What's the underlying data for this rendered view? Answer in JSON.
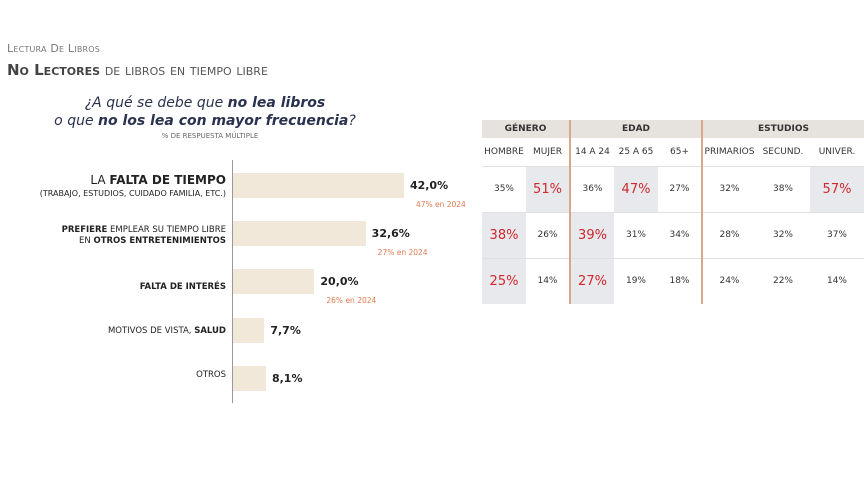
{
  "header": {
    "kicker": "Lectura De Libros",
    "title_bold": "No Lectores",
    "title_rest": " de libros en tiempo libre"
  },
  "question": {
    "p1": "¿A qué se debe que ",
    "b1": "no lea libros",
    "p2": "o que ",
    "b2": "no los lea con mayor frecuencia",
    "p3": "?",
    "note": "% DE RESPUESTA MÚLTIPLE"
  },
  "chart_data": {
    "type": "bar",
    "orientation": "horizontal",
    "categories": [
      "LA FALTA DE TIEMPO (TRABAJO, ESTUDIOS, CUIDADO FAMILIA, ETC.)",
      "PREFIERE EMPLEAR SU TIEMPO LIBRE EN OTROS ENTRETENIMIENTOS",
      "FALTA DE INTERÉS",
      "MOTIVOS DE VISTA, SALUD",
      "OTROS"
    ],
    "values": [
      42.0,
      32.6,
      20.0,
      7.7,
      8.1
    ],
    "value_labels": [
      "42,0%",
      "32,6%",
      "20,0%",
      "7,7%",
      "8,1%"
    ],
    "previous_labels": [
      "47% en 2024",
      "27% en 2024",
      "26% en 2024",
      "",
      ""
    ],
    "bar_color": "#f2e8da",
    "labels": [
      {
        "pre": "LA ",
        "bold": "FALTA DE TIEMPO",
        "post": "",
        "sub": "(TRABAJO, ESTUDIOS, CUIDADO FAMILIA, ETC.)"
      },
      {
        "pre": "",
        "bold": "PREFIERE",
        "post": " EMPLEAR SU TIEMPO LIBRE",
        "sub_pre": "EN ",
        "sub_bold": "OTROS ENTRETENIMIENTOS"
      },
      {
        "pre": "",
        "bold": "FALTA DE INTERÉS",
        "post": ""
      },
      {
        "pre": "MOTIVOS DE VISTA, ",
        "bold": "SALUD",
        "post": ""
      },
      {
        "pre": "OTROS",
        "bold": "",
        "post": ""
      }
    ]
  },
  "table": {
    "groups": [
      "GÉNERO",
      "EDAD",
      "ESTUDIOS"
    ],
    "columns": [
      "HOMBRE",
      "MUJER",
      "14 A 24",
      "25 A 65",
      "65+",
      "PRIMARIOS",
      "SECUND.",
      "UNIVER."
    ],
    "rows": [
      [
        "35%",
        "51%",
        "36%",
        "47%",
        "27%",
        "32%",
        "38%",
        "57%"
      ],
      [
        "38%",
        "26%",
        "39%",
        "31%",
        "34%",
        "28%",
        "32%",
        "37%"
      ],
      [
        "25%",
        "14%",
        "27%",
        "19%",
        "18%",
        "24%",
        "22%",
        "14%"
      ]
    ],
    "highlight": [
      [
        1,
        3,
        7
      ],
      [
        0,
        2
      ],
      [
        0,
        2
      ]
    ],
    "highlight_color": "#d0282e"
  }
}
